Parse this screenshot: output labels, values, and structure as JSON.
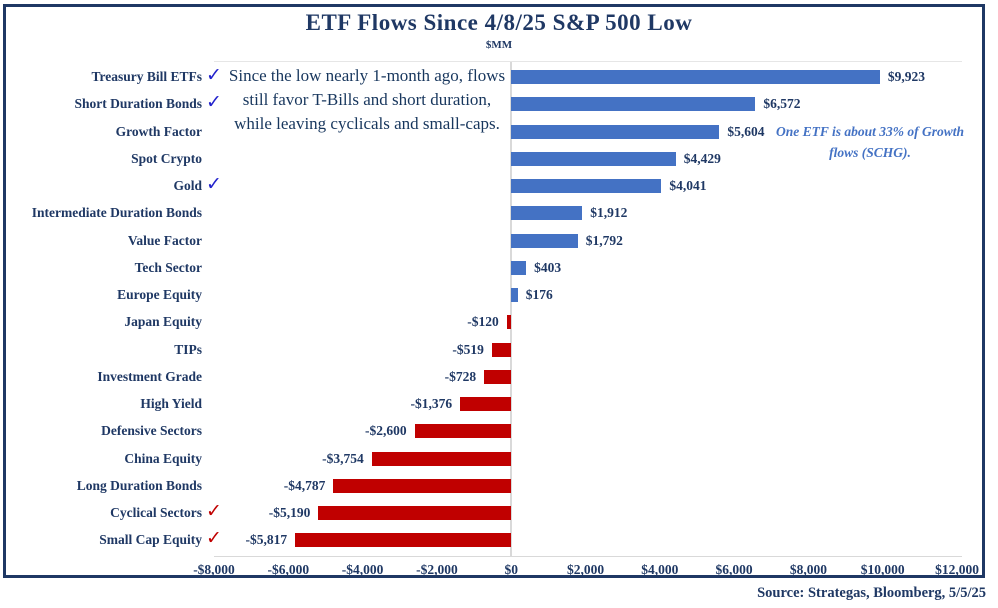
{
  "title": "ETF Flows Since 4/8/25 S&P 500 Low",
  "subtitle": "$MM",
  "annotations": {
    "main": "Since the low nearly 1-month ago, flows still favor T-Bills and short duration, while leaving cyclicals and small-caps.",
    "growth_note": "One ETF is about 33% of Growth flows (SCHG)."
  },
  "source": "Source: Strategas, Bloomberg, 5/5/25",
  "colors": {
    "navy": "#1f3864",
    "positive_bar": "#4472c4",
    "negative_bar": "#c00000",
    "check_blue": "#2222cc",
    "check_red": "#c00000",
    "note_blue": "#4472c4",
    "gridline": "#d9d9d9"
  },
  "chart_data": {
    "type": "bar",
    "orientation": "horizontal",
    "title": "ETF Flows Since 4/8/25 S&P 500 Low",
    "units": "$MM",
    "categories": [
      "Treasury Bill ETFs",
      "Short Duration Bonds",
      "Growth Factor",
      "Spot Crypto",
      "Gold",
      "Intermediate Duration Bonds",
      "Value Factor",
      "Tech Sector",
      "Europe Equity",
      "Japan Equity",
      "TIPs",
      "Investment Grade",
      "High Yield",
      "Defensive Sectors",
      "China Equity",
      "Long Duration Bonds",
      "Cyclical Sectors",
      "Small Cap Equity"
    ],
    "values": [
      9923,
      6572,
      5604,
      4429,
      4041,
      1912,
      1792,
      403,
      176,
      -120,
      -519,
      -728,
      -1376,
      -2600,
      -3754,
      -4787,
      -5190,
      -5817
    ],
    "value_labels": [
      "$9,923",
      "$6,572",
      "$5,604",
      "$4,429",
      "$4,041",
      "$1,912",
      "$1,792",
      "$403",
      "$176",
      "-$120",
      "-$519",
      "-$728",
      "-$1,376",
      "-$2,600",
      "-$3,754",
      "-$4,787",
      "-$5,190",
      "-$5,817"
    ],
    "checks": [
      "blue",
      "blue",
      null,
      null,
      "blue",
      null,
      null,
      null,
      null,
      null,
      null,
      null,
      null,
      null,
      null,
      null,
      "red",
      "red"
    ],
    "xlim": [
      -8000,
      12000
    ],
    "x_ticks": [
      {
        "value": -8000,
        "label": "-$8,000"
      },
      {
        "value": -6000,
        "label": "-$6,000"
      },
      {
        "value": -4000,
        "label": "-$4,000"
      },
      {
        "value": -2000,
        "label": "-$2,000"
      },
      {
        "value": 0,
        "label": "$0"
      },
      {
        "value": 2000,
        "label": "$2,000"
      },
      {
        "value": 4000,
        "label": "$4,000"
      },
      {
        "value": 6000,
        "label": "$6,000"
      },
      {
        "value": 8000,
        "label": "$8,000"
      },
      {
        "value": 10000,
        "label": "$10,000"
      },
      {
        "value": 12000,
        "label": "$12,000"
      }
    ],
    "grid": "zero-axis-only",
    "legend": "none"
  }
}
